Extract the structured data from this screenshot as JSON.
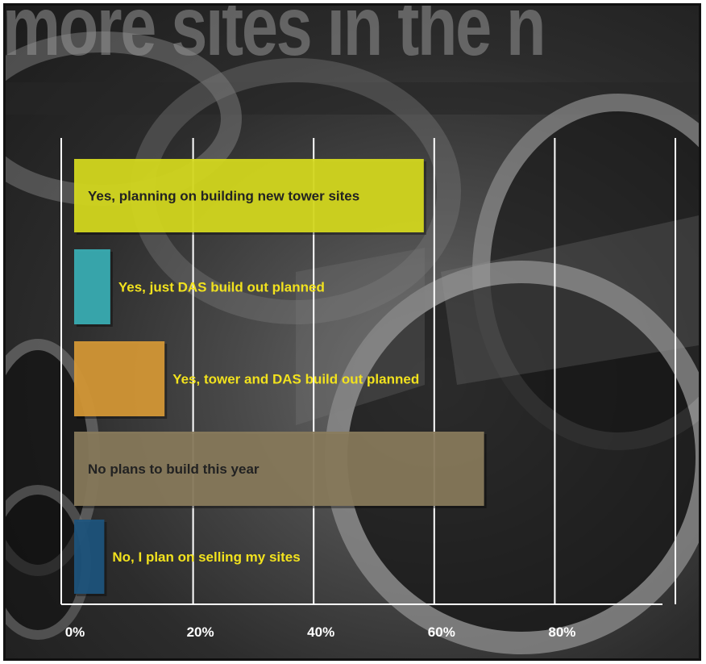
{
  "header": {
    "headline": "more sites in the n"
  },
  "chart_data": {
    "type": "bar",
    "orientation": "horizontal",
    "title": "",
    "xlabel": "",
    "ylabel": "",
    "xlim": [
      0,
      100
    ],
    "ticks": [
      {
        "value": 0,
        "label": "0%"
      },
      {
        "value": 20,
        "label": "20%"
      },
      {
        "value": 40,
        "label": "40%"
      },
      {
        "value": 60,
        "label": "60%"
      },
      {
        "value": 80,
        "label": "80%"
      }
    ],
    "grid": true,
    "categories": [
      "Yes, planning on building new tower sites",
      "Yes, just DAS build out planned",
      "Yes, tower and DAS build out planned",
      "No plans to build this year",
      "No, I plan on selling my sites"
    ],
    "values": [
      58,
      6,
      15,
      68,
      5
    ],
    "colors": [
      "#d8dc1e",
      "#3ab0b6",
      "#d89a36",
      "#8a7c5c",
      "#1d557e"
    ],
    "label_colors": [
      "#222222",
      "#f2e21e",
      "#f2e21e",
      "#222222",
      "#f2e21e"
    ]
  }
}
